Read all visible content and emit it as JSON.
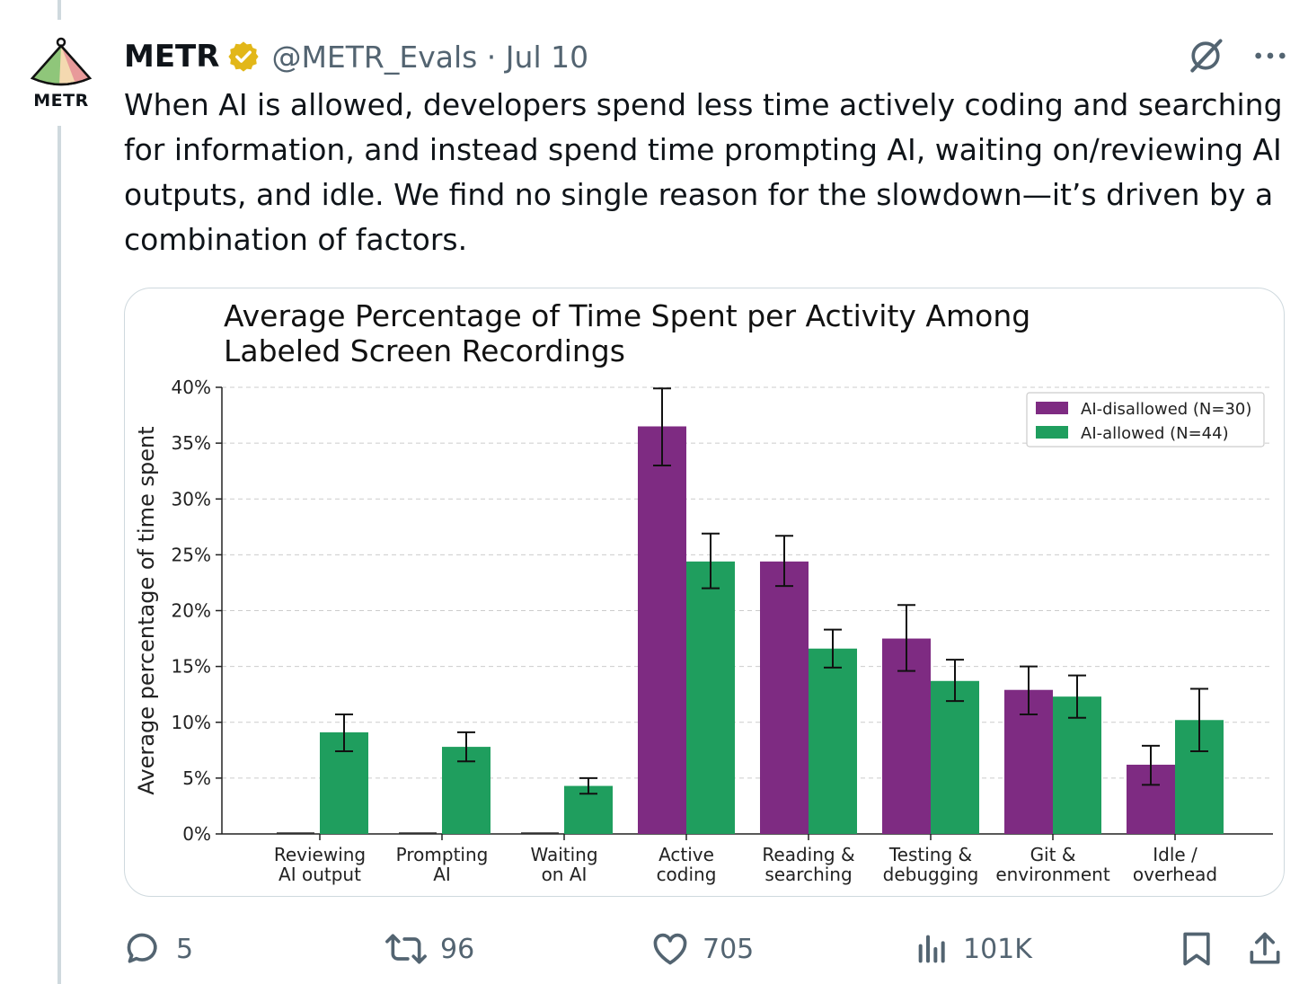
{
  "author": {
    "name": "METR",
    "handle": "@METR_Evals",
    "date": "Jul 10",
    "avatar_text": "METR"
  },
  "tweet": {
    "text": "When AI is allowed, developers spend less time actively coding and searching for information, and instead spend time prompting AI, waiting on/reviewing AI outputs, and idle. We find no single reason for the slowdown—it’s driven by a combination of factors."
  },
  "actions": {
    "replies": "5",
    "retweets": "96",
    "likes": "705",
    "views": "101K"
  },
  "colors": {
    "disallowed": "#7e2b82",
    "allowed": "#1f9e5e"
  },
  "chart_data": {
    "type": "bar",
    "title_lines": [
      "Average Percentage of Time Spent per Activity Among",
      "Labeled Screen Recordings"
    ],
    "ylabel": "Average percentage of time spent",
    "ylim": [
      0,
      40
    ],
    "yticks": [
      0,
      5,
      10,
      15,
      20,
      25,
      30,
      35,
      40
    ],
    "ytick_labels": [
      "0%",
      "5%",
      "10%",
      "15%",
      "20%",
      "25%",
      "30%",
      "35%",
      "40%"
    ],
    "categories": [
      [
        "Reviewing",
        "AI output"
      ],
      [
        "Prompting",
        "AI"
      ],
      [
        "Waiting",
        "on AI"
      ],
      [
        "Active",
        "coding"
      ],
      [
        "Reading &",
        "searching"
      ],
      [
        "Testing &",
        "debugging"
      ],
      [
        "Git &",
        "environment"
      ],
      [
        "Idle /",
        "overhead"
      ]
    ],
    "legend_position": "top-right",
    "series": [
      {
        "name": "AI-disallowed (N=30)",
        "values": [
          0,
          0,
          0,
          36.5,
          24.4,
          17.5,
          12.9,
          6.2
        ],
        "err_low": [
          0,
          0,
          0,
          33.0,
          22.2,
          14.6,
          10.7,
          4.4
        ],
        "err_high": [
          0,
          0,
          0,
          39.9,
          26.7,
          20.5,
          15.0,
          7.9
        ]
      },
      {
        "name": "AI-allowed (N=44)",
        "values": [
          9.1,
          7.8,
          4.3,
          24.4,
          16.6,
          13.7,
          12.3,
          10.2
        ],
        "err_low": [
          7.4,
          6.5,
          3.6,
          22.0,
          14.9,
          11.9,
          10.4,
          7.4
        ],
        "err_high": [
          10.7,
          9.1,
          5.0,
          26.9,
          18.3,
          15.6,
          14.2,
          13.0
        ]
      }
    ]
  }
}
